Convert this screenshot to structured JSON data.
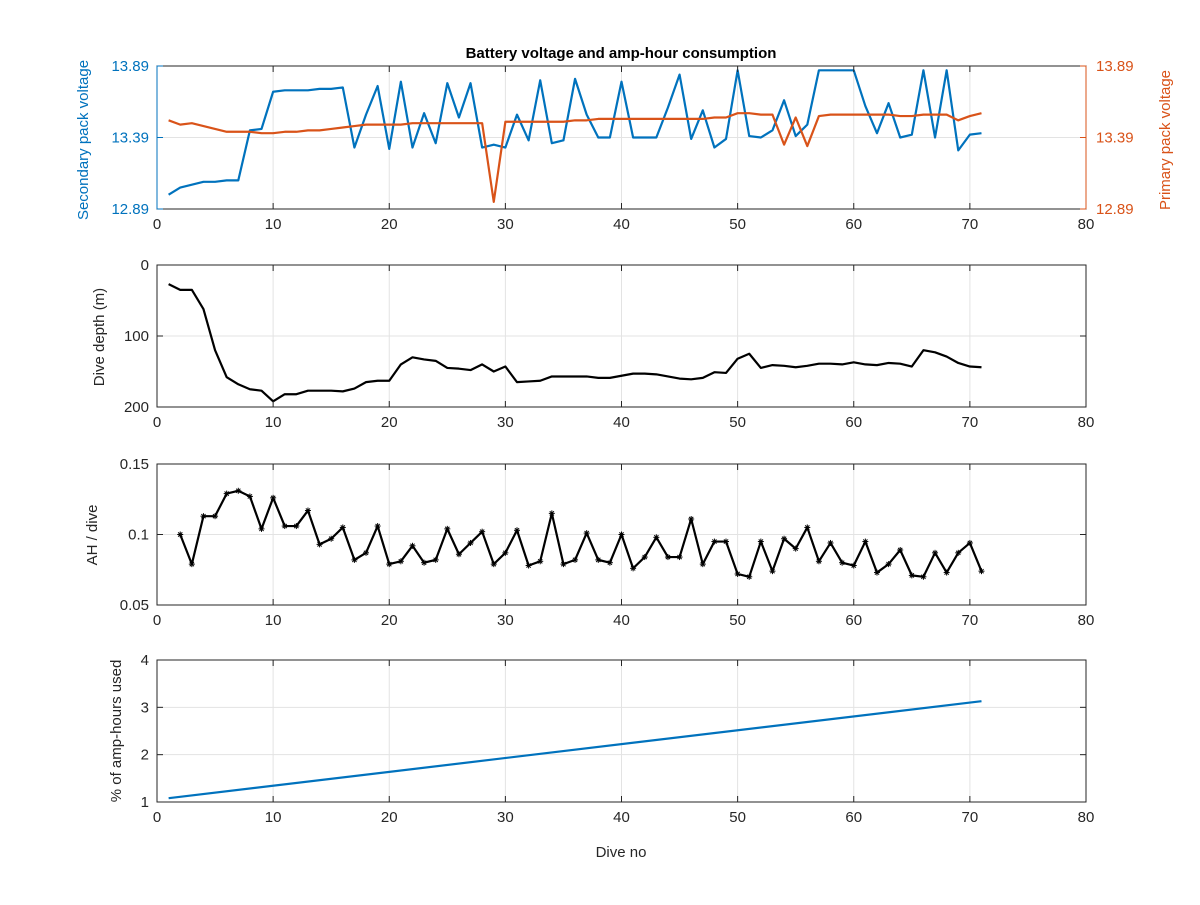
{
  "figure_title": "Battery voltage and amp-hour consumption",
  "colors": {
    "secondary": "#0072BD",
    "primary": "#D95319",
    "black": "#000000",
    "axis_text": "#262626"
  },
  "chart_data": [
    {
      "type": "line",
      "title": "Battery voltage and amp-hour consumption",
      "xlabel": "",
      "xlim": [
        0,
        80
      ],
      "xticks": [
        0,
        10,
        20,
        30,
        40,
        50,
        60,
        70,
        80
      ],
      "ylabel_left": "Secondary pack voltage",
      "ylabel_right": "Primary pack voltage",
      "ylim_left": [
        12.89,
        13.89
      ],
      "ylim_right": [
        12.89,
        13.89
      ],
      "yticks_left": [
        12.89,
        13.39,
        13.89
      ],
      "yticks_right": [
        12.89,
        13.39,
        13.89
      ],
      "yticks_labels": [
        "12.89",
        "13.39",
        "13.89"
      ],
      "grid": true,
      "series": [
        {
          "name": "Secondary pack voltage",
          "axis": "left",
          "color": "#0072BD",
          "x": [
            1,
            2,
            3,
            4,
            5,
            6,
            7,
            8,
            9,
            10,
            11,
            12,
            13,
            14,
            15,
            16,
            17,
            18,
            19,
            20,
            21,
            22,
            23,
            24,
            25,
            26,
            27,
            28,
            29,
            30,
            31,
            32,
            33,
            34,
            35,
            36,
            37,
            38,
            39,
            40,
            41,
            42,
            43,
            44,
            45,
            46,
            47,
            48,
            49,
            50,
            51,
            52,
            53,
            54,
            55,
            56,
            57,
            58,
            59,
            60,
            61,
            62,
            63,
            64,
            65,
            66,
            67,
            68,
            69,
            70,
            71
          ],
          "values": [
            12.99,
            13.04,
            13.06,
            13.08,
            13.08,
            13.09,
            13.09,
            13.44,
            13.45,
            13.71,
            13.72,
            13.72,
            13.72,
            13.73,
            13.73,
            13.74,
            13.32,
            13.55,
            13.75,
            13.31,
            13.78,
            13.32,
            13.56,
            13.35,
            13.77,
            13.53,
            13.77,
            13.32,
            13.34,
            13.32,
            13.55,
            13.37,
            13.79,
            13.35,
            13.37,
            13.8,
            13.55,
            13.39,
            13.39,
            13.78,
            13.39,
            13.39,
            13.39,
            13.6,
            13.83,
            13.38,
            13.58,
            13.32,
            13.38,
            13.86,
            13.4,
            13.39,
            13.44,
            13.65,
            13.4,
            13.48,
            13.86,
            13.86,
            13.86,
            13.86,
            13.61,
            13.42,
            13.63,
            13.39,
            13.41,
            13.86,
            13.39,
            13.86,
            13.3,
            13.41,
            13.42
          ]
        },
        {
          "name": "Primary pack voltage",
          "axis": "right",
          "color": "#D95319",
          "x": [
            1,
            2,
            3,
            4,
            5,
            6,
            7,
            8,
            9,
            10,
            11,
            12,
            13,
            14,
            15,
            16,
            17,
            18,
            19,
            20,
            21,
            22,
            23,
            24,
            25,
            26,
            27,
            28,
            29,
            30,
            31,
            32,
            33,
            34,
            35,
            36,
            37,
            38,
            39,
            40,
            41,
            42,
            43,
            44,
            45,
            46,
            47,
            48,
            49,
            50,
            51,
            52,
            53,
            54,
            55,
            56,
            57,
            58,
            59,
            60,
            61,
            62,
            63,
            64,
            65,
            66,
            67,
            68,
            69,
            70,
            71
          ],
          "values": [
            13.51,
            13.48,
            13.49,
            13.47,
            13.45,
            13.43,
            13.43,
            13.43,
            13.42,
            13.42,
            13.43,
            13.43,
            13.44,
            13.44,
            13.45,
            13.46,
            13.47,
            13.48,
            13.48,
            13.48,
            13.48,
            13.49,
            13.49,
            13.49,
            13.49,
            13.49,
            13.49,
            13.49,
            12.94,
            13.5,
            13.5,
            13.5,
            13.5,
            13.5,
            13.5,
            13.51,
            13.51,
            13.52,
            13.52,
            13.52,
            13.52,
            13.52,
            13.52,
            13.52,
            13.52,
            13.52,
            13.52,
            13.53,
            13.53,
            13.56,
            13.56,
            13.55,
            13.55,
            13.34,
            13.53,
            13.33,
            13.54,
            13.55,
            13.55,
            13.55,
            13.55,
            13.55,
            13.55,
            13.54,
            13.54,
            13.55,
            13.55,
            13.55,
            13.51,
            13.54,
            13.56
          ]
        }
      ]
    },
    {
      "type": "line",
      "title": "",
      "xlabel": "",
      "ylabel": "Dive depth (m)",
      "xlim": [
        0,
        80
      ],
      "xticks": [
        0,
        10,
        20,
        30,
        40,
        50,
        60,
        70,
        80
      ],
      "ylim": [
        0,
        200
      ],
      "yreversed": true,
      "yticks": [
        0,
        100,
        200
      ],
      "grid": true,
      "series": [
        {
          "name": "Dive depth",
          "color": "#000000",
          "x": [
            1,
            2,
            3,
            4,
            5,
            6,
            7,
            8,
            9,
            10,
            11,
            12,
            13,
            14,
            15,
            16,
            17,
            18,
            19,
            20,
            21,
            22,
            23,
            24,
            25,
            26,
            27,
            28,
            29,
            30,
            31,
            32,
            33,
            34,
            35,
            36,
            37,
            38,
            39,
            40,
            41,
            42,
            43,
            44,
            45,
            46,
            47,
            48,
            49,
            50,
            51,
            52,
            53,
            54,
            55,
            56,
            57,
            58,
            59,
            60,
            61,
            62,
            63,
            64,
            65,
            66,
            67,
            68,
            69,
            70,
            71
          ],
          "values": [
            27,
            35,
            35,
            62,
            120,
            158,
            168,
            175,
            177,
            192,
            182,
            182,
            177,
            177,
            177,
            178,
            174,
            165,
            163,
            163,
            140,
            130,
            133,
            135,
            145,
            146,
            148,
            140,
            150,
            143,
            165,
            164,
            163,
            157,
            157,
            157,
            157,
            159,
            159,
            156,
            153,
            153,
            154,
            157,
            160,
            161,
            159,
            151,
            152,
            132,
            125,
            145,
            141,
            142,
            144,
            142,
            139,
            139,
            140,
            137,
            140,
            141,
            138,
            139,
            143,
            120,
            123,
            129,
            138,
            143,
            144
          ]
        }
      ]
    },
    {
      "type": "line",
      "title": "",
      "xlabel": "",
      "ylabel": "AH / dive",
      "xlim": [
        0,
        80
      ],
      "xticks": [
        0,
        10,
        20,
        30,
        40,
        50,
        60,
        70,
        80
      ],
      "ylim": [
        0.05,
        0.15
      ],
      "yticks": [
        0.05,
        0.1,
        0.15
      ],
      "ytick_labels": [
        "0.05",
        "0.1",
        "0.15"
      ],
      "grid": true,
      "markers": "asterisk",
      "series": [
        {
          "name": "AH per dive",
          "color": "#000000",
          "x": [
            2,
            3,
            4,
            5,
            6,
            7,
            8,
            9,
            10,
            11,
            12,
            13,
            14,
            15,
            16,
            17,
            18,
            19,
            20,
            21,
            22,
            23,
            24,
            25,
            26,
            27,
            28,
            29,
            30,
            31,
            32,
            33,
            34,
            35,
            36,
            37,
            38,
            39,
            40,
            41,
            42,
            43,
            44,
            45,
            46,
            47,
            48,
            49,
            50,
            51,
            52,
            53,
            54,
            55,
            56,
            57,
            58,
            59,
            60,
            61,
            62,
            63,
            64,
            65,
            66,
            67,
            68,
            69,
            70,
            71
          ],
          "values": [
            0.1,
            0.079,
            0.113,
            0.113,
            0.129,
            0.131,
            0.127,
            0.104,
            0.126,
            0.106,
            0.106,
            0.117,
            0.093,
            0.097,
            0.105,
            0.082,
            0.087,
            0.106,
            0.079,
            0.081,
            0.092,
            0.08,
            0.082,
            0.104,
            0.086,
            0.094,
            0.102,
            0.079,
            0.087,
            0.103,
            0.078,
            0.081,
            0.115,
            0.079,
            0.082,
            0.101,
            0.082,
            0.08,
            0.1,
            0.076,
            0.084,
            0.098,
            0.084,
            0.084,
            0.111,
            0.079,
            0.095,
            0.095,
            0.072,
            0.07,
            0.095,
            0.074,
            0.097,
            0.09,
            0.105,
            0.081,
            0.094,
            0.08,
            0.078,
            0.095,
            0.073,
            0.079,
            0.089,
            0.071,
            0.07,
            0.087,
            0.073,
            0.087,
            0.094,
            0.074
          ]
        }
      ]
    },
    {
      "type": "line",
      "title": "",
      "xlabel": "Dive no",
      "ylabel": "% of amp-hours used",
      "xlim": [
        0,
        80
      ],
      "xticks": [
        0,
        10,
        20,
        30,
        40,
        50,
        60,
        70,
        80
      ],
      "ylim": [
        1,
        4
      ],
      "yticks": [
        1,
        2,
        3,
        4
      ],
      "grid": true,
      "series": [
        {
          "name": "% of amp-hours used",
          "color": "#0072BD",
          "x": [
            1,
            71
          ],
          "values": [
            1.08,
            3.13
          ]
        }
      ]
    }
  ]
}
